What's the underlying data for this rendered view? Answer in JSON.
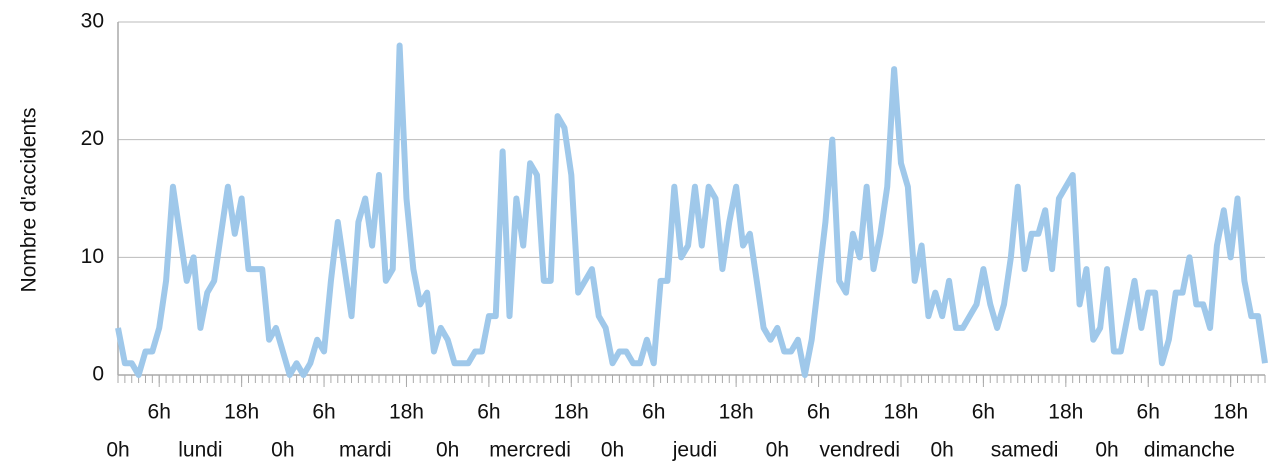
{
  "chart_data": {
    "type": "line",
    "ylabel": "Nombre d'accidents",
    "x": [
      0,
      1,
      2,
      3,
      4,
      5,
      6,
      7,
      8,
      9,
      10,
      11,
      12,
      13,
      14,
      15,
      16,
      17,
      18,
      19,
      20,
      21,
      22,
      23,
      24,
      25,
      26,
      27,
      28,
      29,
      30,
      31,
      32,
      33,
      34,
      35,
      36,
      37,
      38,
      39,
      40,
      41,
      42,
      43,
      44,
      45,
      46,
      47,
      48,
      49,
      50,
      51,
      52,
      53,
      54,
      55,
      56,
      57,
      58,
      59,
      60,
      61,
      62,
      63,
      64,
      65,
      66,
      67,
      68,
      69,
      70,
      71,
      72,
      73,
      74,
      75,
      76,
      77,
      78,
      79,
      80,
      81,
      82,
      83,
      84,
      85,
      86,
      87,
      88,
      89,
      90,
      91,
      92,
      93,
      94,
      95,
      96,
      97,
      98,
      99,
      100,
      101,
      102,
      103,
      104,
      105,
      106,
      107,
      108,
      109,
      110,
      111,
      112,
      113,
      114,
      115,
      116,
      117,
      118,
      119,
      120,
      121,
      122,
      123,
      124,
      125,
      126,
      127,
      128,
      129,
      130,
      131,
      132,
      133,
      134,
      135,
      136,
      137,
      138,
      139,
      140,
      141,
      142,
      143,
      144,
      145,
      146,
      147,
      148,
      149,
      150,
      151,
      152,
      153,
      154,
      155,
      156,
      157,
      158,
      159,
      160,
      161,
      162,
      163,
      164,
      165,
      166,
      167
    ],
    "series": [
      {
        "color": "#9fc8ea",
        "values": [
          4,
          1,
          1,
          0,
          2,
          2,
          4,
          8,
          16,
          12,
          8,
          10,
          4,
          7,
          8,
          12,
          16,
          12,
          15,
          9,
          9,
          9,
          3,
          4,
          2,
          0,
          1,
          0,
          1,
          3,
          2,
          8,
          13,
          9,
          5,
          13,
          15,
          11,
          17,
          8,
          9,
          28,
          15,
          9,
          6,
          7,
          2,
          4,
          3,
          1,
          1,
          1,
          2,
          2,
          5,
          5,
          19,
          5,
          15,
          11,
          18,
          17,
          8,
          8,
          22,
          21,
          17,
          7,
          8,
          9,
          5,
          4,
          1,
          2,
          2,
          1,
          1,
          3,
          1,
          8,
          8,
          16,
          10,
          11,
          16,
          11,
          16,
          15,
          9,
          13,
          16,
          11,
          12,
          8,
          4,
          3,
          4,
          2,
          2,
          3,
          0,
          3,
          8,
          13,
          20,
          8,
          7,
          12,
          10,
          16,
          9,
          12,
          16,
          26,
          18,
          16,
          8,
          11,
          5,
          7,
          5,
          8,
          4,
          4,
          5,
          6,
          9,
          6,
          4,
          6,
          10,
          16,
          9,
          12,
          12,
          14,
          9,
          15,
          16,
          17,
          6,
          9,
          3,
          4,
          9,
          2,
          2,
          5,
          8,
          4,
          7,
          7,
          1,
          3,
          7,
          7,
          10,
          6,
          6,
          4,
          11,
          14,
          10,
          15,
          8,
          5,
          5,
          1
        ]
      }
    ],
    "xlim": [
      0,
      167
    ],
    "xticks": [
      {
        "value": 6,
        "label": "6h"
      },
      {
        "value": 18,
        "label": "18h"
      },
      {
        "value": 30,
        "label": "6h"
      },
      {
        "value": 42,
        "label": "18h"
      },
      {
        "value": 54,
        "label": "6h"
      },
      {
        "value": 66,
        "label": "18h"
      },
      {
        "value": 78,
        "label": "6h"
      },
      {
        "value": 90,
        "label": "18h"
      },
      {
        "value": 102,
        "label": "6h"
      },
      {
        "value": 114,
        "label": "18h"
      },
      {
        "value": 126,
        "label": "6h"
      },
      {
        "value": 138,
        "label": "18h"
      },
      {
        "value": 150,
        "label": "6h"
      },
      {
        "value": 162,
        "label": "18h"
      }
    ],
    "xticks2": [
      {
        "value": 0,
        "label": "0h"
      },
      {
        "value": 12,
        "label": "lundi"
      },
      {
        "value": 24,
        "label": "0h"
      },
      {
        "value": 36,
        "label": "mardi"
      },
      {
        "value": 48,
        "label": "0h"
      },
      {
        "value": 60,
        "label": "mercredi"
      },
      {
        "value": 72,
        "label": "0h"
      },
      {
        "value": 84,
        "label": "jeudi"
      },
      {
        "value": 96,
        "label": "0h"
      },
      {
        "value": 108,
        "label": "vendredi"
      },
      {
        "value": 120,
        "label": "0h"
      },
      {
        "value": 132,
        "label": "samedi"
      },
      {
        "value": 144,
        "label": "0h"
      },
      {
        "value": 156,
        "label": "dimanche"
      }
    ],
    "ylim": [
      0,
      30
    ],
    "yticks": [
      0,
      10,
      20,
      30
    ],
    "grid": true
  }
}
